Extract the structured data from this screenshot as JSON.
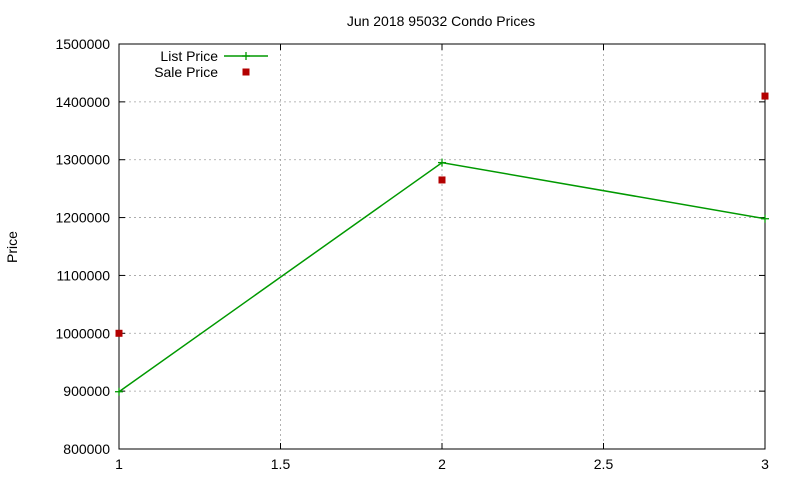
{
  "chart_data": {
    "type": "line",
    "title": "Jun 2018 95032 Condo Prices",
    "xlabel": "",
    "ylabel": "Price",
    "xlim": [
      1,
      3
    ],
    "ylim": [
      800000,
      1500000
    ],
    "x_ticks": [
      "1",
      "1.5",
      "2",
      "2.5",
      "3"
    ],
    "y_ticks": [
      "800000",
      "900000",
      "1000000",
      "1100000",
      "1200000",
      "1300000",
      "1400000",
      "1500000"
    ],
    "grid": true,
    "legend_position": "top-left",
    "series": [
      {
        "name": "List Price",
        "style": "line-with-plus-markers",
        "color": "#009900",
        "x": [
          1,
          2,
          3
        ],
        "y": [
          899000,
          1295000,
          1198000
        ]
      },
      {
        "name": "Sale Price",
        "style": "square-markers",
        "color": "#b30000",
        "x": [
          1,
          2,
          3
        ],
        "y": [
          1000000,
          1265000,
          1410000
        ]
      }
    ]
  }
}
